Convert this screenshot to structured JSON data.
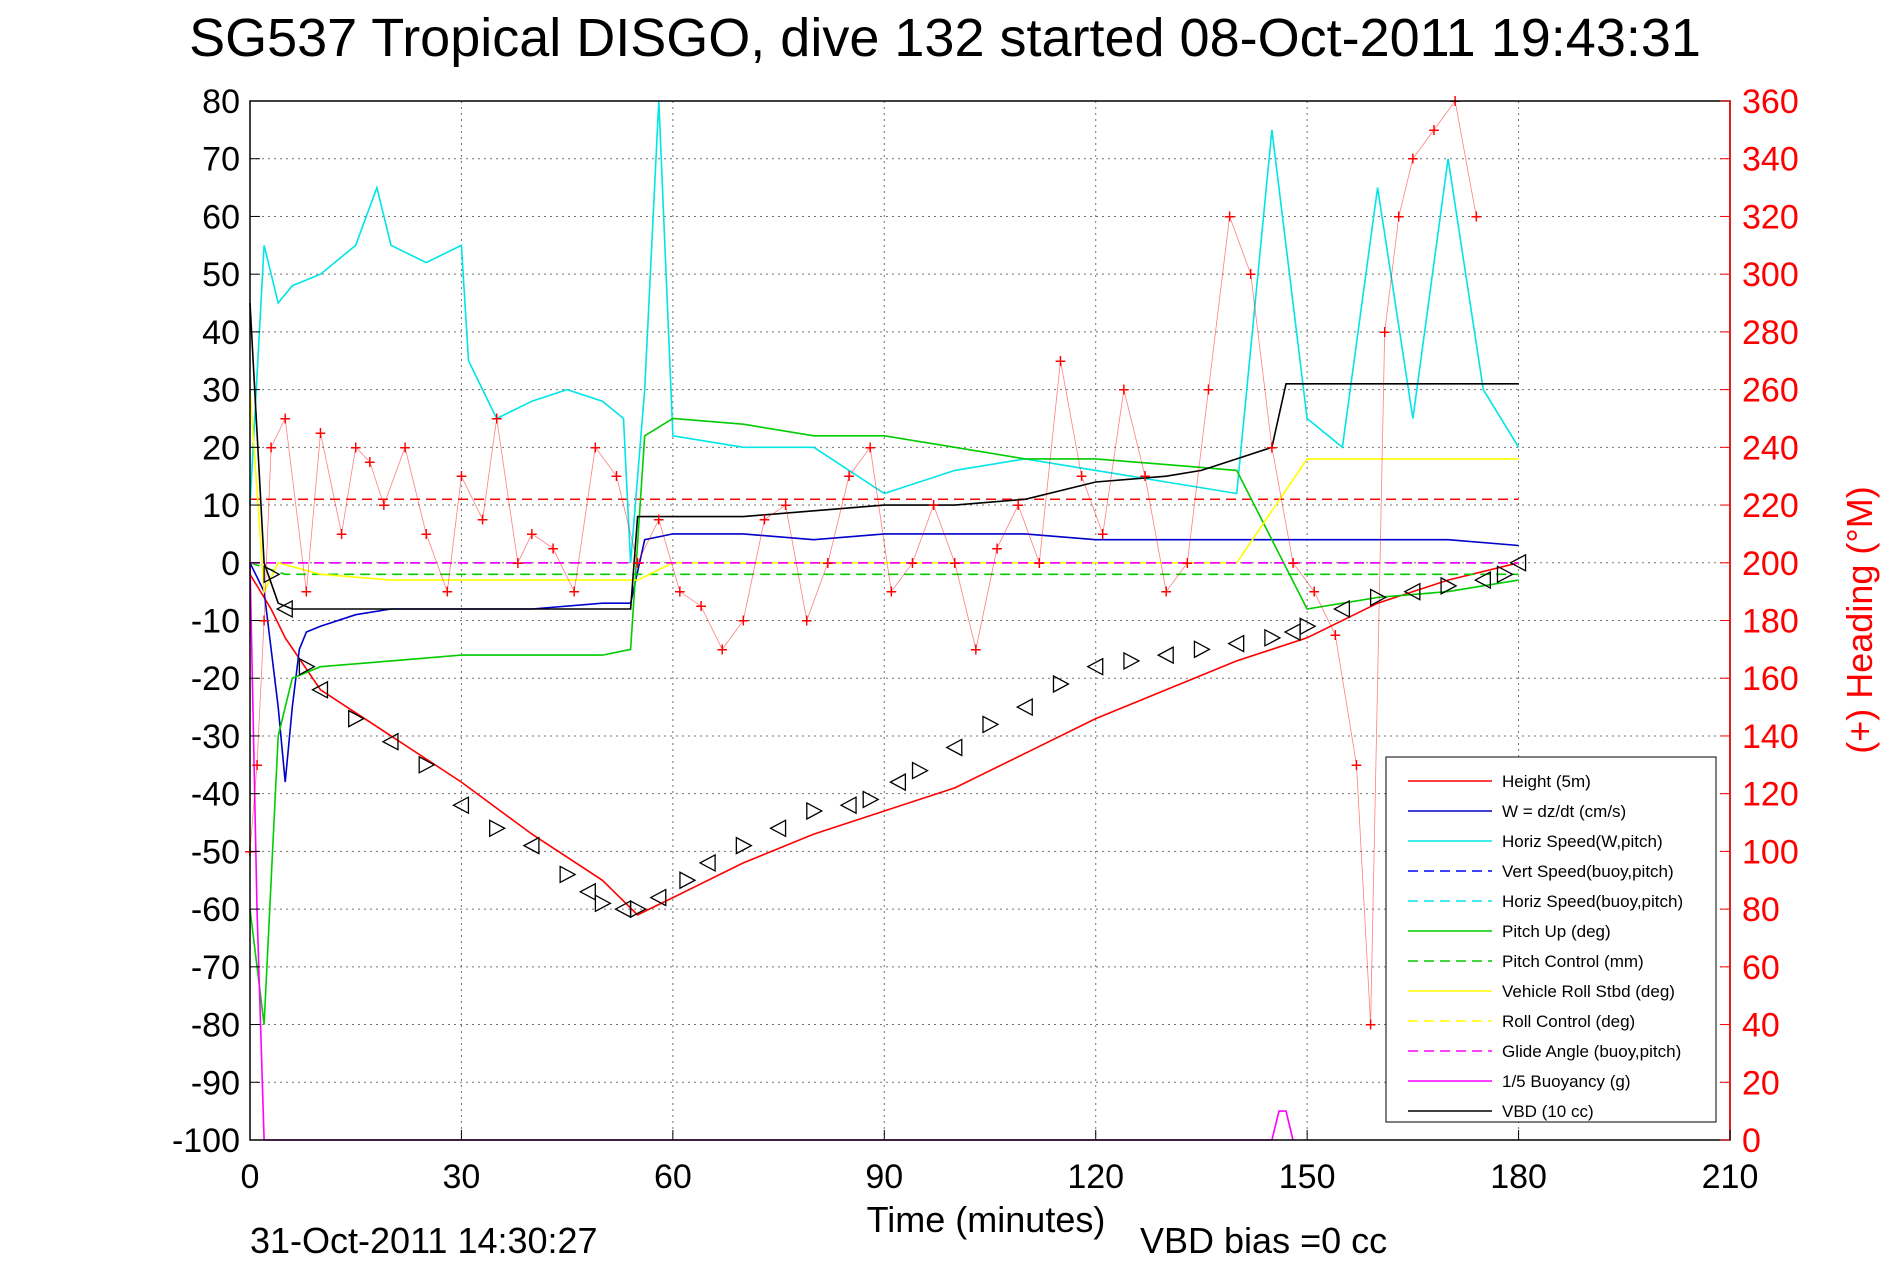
{
  "chart_data": {
    "type": "line",
    "title": "SG537 Tropical DISGO, dive 132 started 08-Oct-2011 19:43:31",
    "xlabel": "Time (minutes)",
    "ylabel_right": "(+) Heading (°M)",
    "footer_left": "31-Oct-2011 14:30:27",
    "footer_right": "VBD bias =0 cc",
    "xlim": [
      0,
      210
    ],
    "ylim": [
      -100,
      80
    ],
    "ylim_right": [
      0,
      360
    ],
    "x_ticks": [
      "0",
      "30",
      "60",
      "90",
      "120",
      "150",
      "180",
      "210"
    ],
    "y_ticks": [
      "80",
      "70",
      "60",
      "50",
      "40",
      "30",
      "20",
      "10",
      "0",
      "-10",
      "-20",
      "-30",
      "-40",
      "-50",
      "-60",
      "-70",
      "-80",
      "-90",
      "-100"
    ],
    "y_right_ticks": [
      "360",
      "340",
      "320",
      "300",
      "280",
      "260",
      "240",
      "220",
      "200",
      "180",
      "160",
      "140",
      "120",
      "100",
      "80",
      "60",
      "40",
      "20",
      "0"
    ],
    "grid": true,
    "legend_position": "bottom-right",
    "series": [
      {
        "name": "Height (5m)",
        "color": "#ff0000",
        "style": "solid",
        "x": [
          0,
          3,
          5,
          10,
          20,
          30,
          40,
          50,
          55,
          60,
          70,
          80,
          90,
          100,
          110,
          120,
          130,
          140,
          150,
          160,
          170,
          180
        ],
        "values": [
          -2,
          -8,
          -13,
          -22,
          -30,
          -38,
          -47,
          -55,
          -61,
          -58,
          -52,
          -47,
          -43,
          -39,
          -33,
          -27,
          -22,
          -17,
          -13,
          -7,
          -3,
          0
        ]
      },
      {
        "name": "W = dz/dt (cm/s)",
        "color": "#0000cc",
        "style": "solid",
        "x": [
          0,
          2,
          4,
          5,
          6,
          7,
          8,
          10,
          15,
          20,
          30,
          40,
          50,
          54,
          56,
          60,
          70,
          80,
          90,
          100,
          110,
          120,
          130,
          140,
          150,
          160,
          170,
          180
        ],
        "values": [
          0,
          -5,
          -25,
          -38,
          -25,
          -15,
          -12,
          -11,
          -9,
          -8,
          -8,
          -8,
          -7,
          -7,
          4,
          5,
          5,
          4,
          5,
          5,
          5,
          4,
          4,
          4,
          4,
          4,
          4,
          3
        ]
      },
      {
        "name": "Horiz Speed(W,pitch)",
        "color": "#00e5e5",
        "style": "solid",
        "x": [
          0,
          2,
          4,
          6,
          10,
          15,
          18,
          20,
          25,
          30,
          31,
          35,
          40,
          45,
          50,
          53,
          54,
          56,
          58,
          60,
          70,
          80,
          90,
          100,
          110,
          120,
          130,
          140,
          145,
          150,
          155,
          160,
          165,
          170,
          175,
          180
        ],
        "values": [
          10,
          55,
          45,
          48,
          50,
          55,
          65,
          55,
          52,
          55,
          35,
          25,
          28,
          30,
          28,
          25,
          0,
          30,
          80,
          22,
          20,
          20,
          12,
          16,
          18,
          16,
          14,
          12,
          75,
          25,
          20,
          65,
          25,
          70,
          30,
          20
        ]
      },
      {
        "name": "Vert Speed(buoy,pitch)",
        "color": "#0000ff",
        "style": "dashed",
        "x": [
          0,
          180
        ],
        "values": [
          0,
          0
        ]
      },
      {
        "name": "Horiz Speed(buoy,pitch)",
        "color": "#00e5e5",
        "style": "dashed",
        "x": [
          0,
          180
        ],
        "values": [
          0,
          0
        ]
      },
      {
        "name": "Pitch Up (deg)",
        "color": "#00cc00",
        "style": "solid",
        "x": [
          0,
          2,
          4,
          6,
          10,
          20,
          30,
          40,
          50,
          54,
          56,
          60,
          70,
          80,
          90,
          100,
          110,
          120,
          130,
          140,
          150,
          160,
          170,
          180
        ],
        "values": [
          -60,
          -80,
          -30,
          -20,
          -18,
          -17,
          -16,
          -16,
          -16,
          -15,
          22,
          25,
          24,
          22,
          22,
          20,
          18,
          18,
          17,
          16,
          -8,
          -6,
          -5,
          -3
        ]
      },
      {
        "name": "Pitch Control (mm)",
        "color": "#00cc00",
        "style": "dashed",
        "x": [
          0,
          5,
          10,
          20,
          30,
          40,
          50,
          55,
          60,
          70,
          80,
          90,
          100,
          110,
          120,
          130,
          140,
          150,
          160,
          170,
          180
        ],
        "values": [
          0,
          -2,
          -2,
          -2,
          -2,
          -2,
          -2,
          -2,
          -2,
          -2,
          -2,
          -2,
          -2,
          -2,
          -2,
          -2,
          -2,
          -2,
          -2,
          -2,
          -2
        ]
      },
      {
        "name": "Vehicle Roll Stbd (deg)",
        "color": "#ffff00",
        "style": "solid",
        "x": [
          0,
          2,
          4,
          10,
          20,
          30,
          40,
          50,
          55,
          60,
          70,
          80,
          90,
          100,
          110,
          120,
          130,
          140,
          150,
          160,
          170,
          180
        ],
        "values": [
          30,
          -5,
          0,
          -2,
          -3,
          -3,
          -3,
          -3,
          -3,
          0,
          0,
          0,
          0,
          0,
          0,
          0,
          0,
          0,
          18,
          18,
          18,
          18
        ]
      },
      {
        "name": "Roll Control (deg)",
        "color": "#ffff00",
        "style": "dashed",
        "x": [
          0,
          180
        ],
        "values": [
          0,
          0
        ]
      },
      {
        "name": "Glide Angle (buoy,pitch)",
        "color": "#ff00ff",
        "style": "dashed",
        "x": [
          0,
          180
        ],
        "values": [
          0,
          0
        ]
      },
      {
        "name": "1/5 Buoyancy (g)",
        "color": "#ff00ff",
        "style": "solid",
        "x": [
          0,
          1,
          2,
          3,
          145,
          146,
          147,
          148
        ],
        "values": [
          0,
          -60,
          -100,
          -100,
          -100,
          -95,
          -95,
          -100
        ]
      },
      {
        "name": "VBD (10 cc)",
        "color": "#000000",
        "style": "solid",
        "x": [
          0,
          2,
          4,
          6,
          10,
          20,
          30,
          40,
          50,
          54,
          55,
          70,
          80,
          90,
          100,
          110,
          120,
          130,
          135,
          140,
          145,
          147,
          150,
          170,
          180
        ],
        "values": [
          45,
          0,
          -7,
          -8,
          -8,
          -8,
          -8,
          -8,
          -8,
          -8,
          8,
          8,
          9,
          10,
          10,
          11,
          14,
          15,
          16,
          18,
          20,
          31,
          31,
          31,
          31
        ]
      }
    ],
    "heading": {
      "name": "(+) Heading (°M)",
      "color": "#ff0000",
      "marker": "+",
      "x": [
        0,
        1,
        2,
        3,
        5,
        8,
        10,
        13,
        15,
        17,
        19,
        22,
        25,
        28,
        30,
        33,
        35,
        38,
        40,
        43,
        46,
        49,
        52,
        55,
        58,
        61,
        64,
        67,
        70,
        73,
        76,
        79,
        82,
        85,
        88,
        91,
        94,
        97,
        100,
        103,
        106,
        109,
        112,
        115,
        118,
        121,
        124,
        127,
        130,
        133,
        136,
        139,
        142,
        145,
        148,
        151,
        154,
        157,
        159,
        161,
        163,
        165,
        168,
        171,
        174
      ],
      "values": [
        100,
        130,
        180,
        240,
        250,
        190,
        245,
        210,
        240,
        235,
        220,
        240,
        210,
        190,
        230,
        215,
        250,
        200,
        210,
        205,
        190,
        240,
        230,
        200,
        215,
        190,
        185,
        170,
        180,
        215,
        220,
        180,
        200,
        230,
        240,
        190,
        200,
        220,
        200,
        170,
        205,
        220,
        200,
        270,
        230,
        210,
        260,
        230,
        190,
        200,
        260,
        320,
        300,
        240,
        200,
        190,
        175,
        130,
        40,
        280,
        320,
        340,
        350,
        360,
        320
      ]
    },
    "reference_lines": [
      {
        "color": "#ff0000",
        "style": "dashed",
        "y_right": 222
      },
      {
        "color": "#ff00ff",
        "style": "dashed",
        "y": 0
      }
    ],
    "markers_triangles": {
      "x": [
        3,
        5,
        8,
        10,
        15,
        20,
        25,
        30,
        35,
        40,
        45,
        48,
        50,
        53,
        55,
        58,
        62,
        65,
        70,
        75,
        80,
        85,
        88,
        92,
        95,
        100,
        105,
        110,
        115,
        120,
        125,
        130,
        135,
        140,
        145,
        148,
        150,
        155,
        160,
        165,
        170,
        175,
        178,
        180
      ],
      "values": [
        -2,
        -8,
        -18,
        -22,
        -27,
        -31,
        -35,
        -42,
        -46,
        -49,
        -54,
        -57,
        -59,
        -60,
        -60,
        -58,
        -55,
        -52,
        -49,
        -46,
        -43,
        -42,
        -41,
        -38,
        -36,
        -32,
        -28,
        -25,
        -21,
        -18,
        -17,
        -16,
        -15,
        -14,
        -13,
        -12,
        -11,
        -8,
        -6,
        -5,
        -4,
        -3,
        -2,
        0
      ]
    }
  }
}
